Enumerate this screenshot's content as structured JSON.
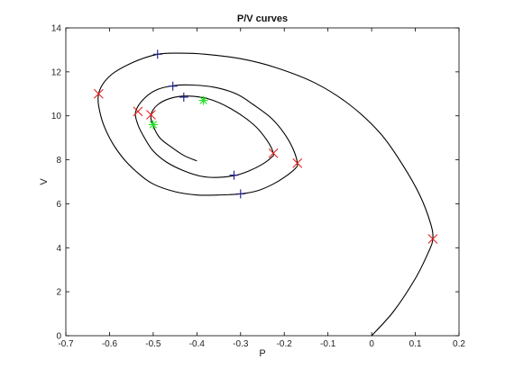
{
  "chart_data": {
    "type": "line",
    "title": "P/V curves",
    "xlabel": "P",
    "ylabel": "V",
    "xlim": [
      -0.7,
      0.2
    ],
    "ylim": [
      0,
      14
    ],
    "xticks": [
      -0.7,
      -0.6,
      -0.5,
      -0.4,
      -0.3,
      -0.2,
      -0.1,
      0,
      0.1,
      0.2
    ],
    "yticks": [
      0,
      2,
      4,
      6,
      8,
      10,
      12,
      14
    ],
    "xtick_labels": [
      "-0.7",
      "-0.6",
      "-0.5",
      "-0.4",
      "-0.3",
      "-0.2",
      "-0.1",
      "0",
      "0.1",
      "0.2"
    ],
    "ytick_labels": [
      "0",
      "2",
      "4",
      "6",
      "8",
      "10",
      "12",
      "14"
    ],
    "grid": false,
    "box": true,
    "series": [
      {
        "style": "curve",
        "color": "#000000",
        "x": [
          0.0,
          0.05,
          0.1,
          0.13,
          0.14,
          0.135,
          0.11,
          0.07,
          0.02,
          -0.05,
          -0.13,
          -0.22,
          -0.3,
          -0.38,
          -0.44,
          -0.49,
          -0.55,
          -0.6,
          -0.625,
          -0.62,
          -0.6,
          -0.57,
          -0.535,
          -0.5,
          -0.45,
          -0.4,
          -0.35,
          -0.3,
          -0.26,
          -0.225,
          -0.2,
          -0.175,
          -0.17,
          -0.18,
          -0.2,
          -0.23,
          -0.27,
          -0.31,
          -0.36,
          -0.41,
          -0.45,
          -0.49,
          -0.52,
          -0.54,
          -0.535,
          -0.52,
          -0.5,
          -0.47,
          -0.43,
          -0.39,
          -0.35,
          -0.31,
          -0.28,
          -0.25,
          -0.23,
          -0.225,
          -0.24,
          -0.27,
          -0.32,
          -0.37,
          -0.42,
          -0.46,
          -0.49,
          -0.505,
          -0.5,
          -0.485,
          -0.46,
          -0.43,
          -0.4
        ],
        "y": [
          0.0,
          1.1,
          2.6,
          3.8,
          4.4,
          5.1,
          6.4,
          7.8,
          9.2,
          10.5,
          11.5,
          12.2,
          12.6,
          12.8,
          12.85,
          12.8,
          12.4,
          11.8,
          11.0,
          10.0,
          9.0,
          8.1,
          7.4,
          6.9,
          6.55,
          6.4,
          6.4,
          6.45,
          6.6,
          6.9,
          7.2,
          7.6,
          7.85,
          8.5,
          9.2,
          9.9,
          10.5,
          11.0,
          11.3,
          11.4,
          11.38,
          11.2,
          10.8,
          10.2,
          9.6,
          9.0,
          8.4,
          7.9,
          7.5,
          7.25,
          7.2,
          7.3,
          7.5,
          7.8,
          8.1,
          8.3,
          8.9,
          9.6,
          10.3,
          10.75,
          10.9,
          10.8,
          10.5,
          10.05,
          9.55,
          9.0,
          8.6,
          8.2,
          7.95
        ]
      },
      {
        "style": "marker",
        "marker": "x",
        "color": "#e8211d",
        "x": [
          0.14,
          -0.625,
          -0.535,
          -0.505,
          -0.17,
          -0.225
        ],
        "y": [
          4.4,
          11.0,
          10.2,
          10.05,
          7.85,
          8.3
        ]
      },
      {
        "style": "marker",
        "marker": "+",
        "color": "#1a1a8c",
        "x": [
          -0.49,
          -0.455,
          -0.43,
          -0.3,
          -0.315
        ],
        "y": [
          12.8,
          11.35,
          10.85,
          6.45,
          7.3
        ]
      },
      {
        "style": "marker",
        "marker": "*",
        "color": "#22dd22",
        "x": [
          -0.385,
          -0.5
        ],
        "y": [
          10.7,
          9.6
        ]
      }
    ]
  }
}
